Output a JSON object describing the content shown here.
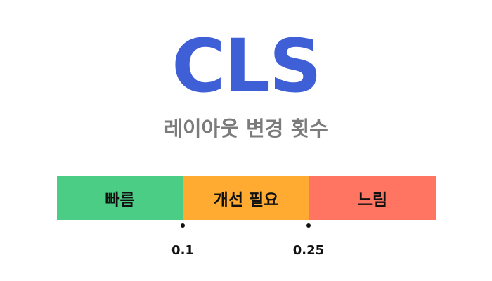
{
  "title": "CLS",
  "subtitle": "레이아웃 변경 횟수",
  "colors": {
    "title": "#3f5fd7",
    "subtitle": "#7b7b7b",
    "good": "#4ccd86",
    "needs_improvement": "#ffaa31",
    "poor": "#ff7562"
  },
  "segments": {
    "good": "빠름",
    "needs_improvement": "개선 필요",
    "poor": "느림"
  },
  "thresholds": {
    "first": "0.1",
    "second": "0.25"
  }
}
